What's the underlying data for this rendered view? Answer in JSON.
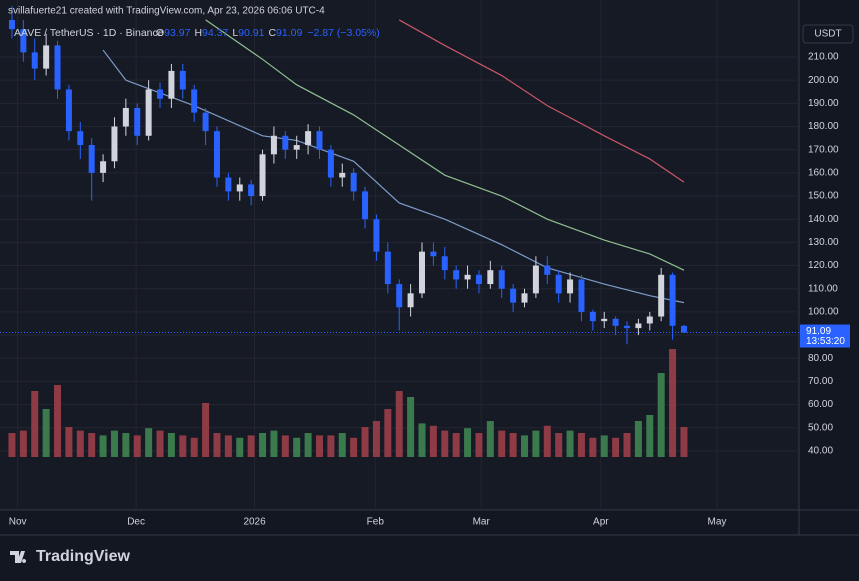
{
  "header": "svillafuerte21 created with TradingView.com, Apr 23, 2026 06:06 UTC-4",
  "brand": "TradingView",
  "chart_data": {
    "type": "candlestick",
    "symbol": "AAVE / TetherUS · 1D · Binance",
    "legend_prefixes": [
      "O",
      "H",
      "L",
      "C"
    ],
    "change": "−2.87 (−3.05%)",
    "currency": "USDT",
    "countdown": "13:53:20",
    "up_color": "#d1d4dc",
    "down_color": "#2962ff",
    "volume_up_color": "#3b7a4c",
    "volume_down_color": "#8e3b46",
    "open": [
      226,
      222,
      212,
      205,
      215,
      196,
      178,
      172,
      160,
      165,
      180,
      188,
      176,
      196,
      192,
      204,
      196,
      186,
      178,
      158,
      152,
      155,
      150,
      168,
      176,
      170,
      172,
      178,
      170,
      158,
      160,
      152,
      140,
      126,
      112,
      102,
      108,
      126,
      124,
      118,
      114,
      116,
      112,
      118,
      110,
      104,
      108,
      120,
      116,
      108,
      114,
      100,
      96,
      97,
      94,
      93,
      95,
      98,
      116,
      93.97
    ],
    "high": [
      232,
      226,
      218,
      220,
      217,
      198,
      182,
      175,
      168,
      184,
      192,
      190,
      200,
      199,
      207,
      207,
      198,
      188,
      180,
      160,
      158,
      157,
      170,
      180,
      178,
      176,
      181,
      180,
      172,
      164,
      162,
      154,
      142,
      130,
      114,
      112,
      130,
      130,
      128,
      120,
      120,
      118,
      122,
      120,
      112,
      110,
      124,
      124,
      118,
      117,
      116,
      101,
      100,
      98,
      96,
      97,
      100,
      119,
      117,
      94.37
    ],
    "low": [
      218,
      208,
      200,
      202,
      192,
      174,
      166,
      148,
      156,
      162,
      176,
      172,
      174,
      188,
      188,
      192,
      182,
      172,
      154,
      148,
      148,
      146,
      148,
      164,
      166,
      166,
      168,
      166,
      154,
      154,
      148,
      136,
      122,
      108,
      92,
      98,
      106,
      120,
      114,
      110,
      110,
      108,
      110,
      106,
      100,
      102,
      106,
      112,
      104,
      104,
      96,
      92,
      93,
      90,
      86,
      90,
      92,
      96,
      88,
      90.91
    ],
    "close": [
      222,
      212,
      205,
      215,
      196,
      178,
      172,
      160,
      165,
      180,
      188,
      176,
      196,
      192,
      204,
      196,
      186,
      178,
      158,
      152,
      155,
      150,
      168,
      176,
      170,
      172,
      178,
      170,
      158,
      160,
      152,
      140,
      126,
      112,
      102,
      108,
      126,
      124,
      118,
      114,
      116,
      112,
      118,
      110,
      104,
      108,
      120,
      116,
      108,
      114,
      100,
      96,
      97,
      94,
      93,
      95,
      98,
      116,
      94,
      91.09
    ],
    "volume": [
      20,
      22,
      55,
      40,
      60,
      25,
      22,
      20,
      18,
      22,
      20,
      18,
      24,
      22,
      20,
      18,
      16,
      45,
      20,
      18,
      16,
      18,
      20,
      22,
      18,
      16,
      20,
      18,
      18,
      20,
      16,
      25,
      30,
      40,
      55,
      50,
      28,
      26,
      22,
      20,
      24,
      20,
      30,
      22,
      20,
      18,
      22,
      26,
      20,
      22,
      20,
      16,
      18,
      16,
      20,
      30,
      35,
      70,
      90,
      25
    ],
    "volume_lim": [
      0,
      100
    ],
    "ma": [
      {
        "color": "#7e9cc9",
        "x": [
          8,
          10,
          16,
          22,
          25,
          30,
          34,
          38,
          43,
          47,
          52,
          56,
          59
        ],
        "values": [
          213,
          200,
          189,
          176,
          174,
          165,
          147,
          140,
          129,
          119,
          112,
          107,
          104
        ]
      },
      {
        "color": "#8fbf8f",
        "x": [
          17,
          22,
          25,
          30,
          34,
          38,
          43,
          47,
          52,
          56,
          59
        ],
        "values": [
          226,
          209,
          198,
          185,
          172,
          159,
          150,
          140,
          131,
          125,
          118
        ]
      },
      {
        "color": "#c9566a",
        "x": [
          34,
          38,
          43,
          47,
          52,
          56,
          59
        ],
        "values": [
          226,
          215,
          202,
          189,
          176,
          166,
          156
        ]
      }
    ],
    "xlim": [
      -1.05,
      69.1
    ],
    "xticks": [
      {
        "value": 0.5,
        "label": "Nov"
      },
      {
        "value": 10.9,
        "label": "Dec"
      },
      {
        "value": 21.3,
        "label": "2026"
      },
      {
        "value": 31.9,
        "label": "Feb"
      },
      {
        "value": 41.2,
        "label": "Mar"
      },
      {
        "value": 51.7,
        "label": "Apr"
      },
      {
        "value": 61.9,
        "label": "May"
      }
    ],
    "ylim": [
      14.5,
      234.6
    ],
    "yticks": [
      {
        "value": 40,
        "label": "40.00"
      },
      {
        "value": 50,
        "label": "50.00"
      },
      {
        "value": 60,
        "label": "60.00"
      },
      {
        "value": 70,
        "label": "70.00"
      },
      {
        "value": 80,
        "label": "80.00"
      },
      {
        "value": 90,
        "label": "90.00"
      },
      {
        "value": 100,
        "label": "100.00"
      },
      {
        "value": 110,
        "label": "110.00"
      },
      {
        "value": 120,
        "label": "120.00"
      },
      {
        "value": 130,
        "label": "130.00"
      },
      {
        "value": 140,
        "label": "140.00"
      },
      {
        "value": 150,
        "label": "150.00"
      },
      {
        "value": 160,
        "label": "160.00"
      },
      {
        "value": 170,
        "label": "170.00"
      },
      {
        "value": 180,
        "label": "180.00"
      },
      {
        "value": 190,
        "label": "190.00"
      },
      {
        "value": 200,
        "label": "200.00"
      },
      {
        "value": 210,
        "label": "210.00"
      }
    ],
    "grid": true
  }
}
